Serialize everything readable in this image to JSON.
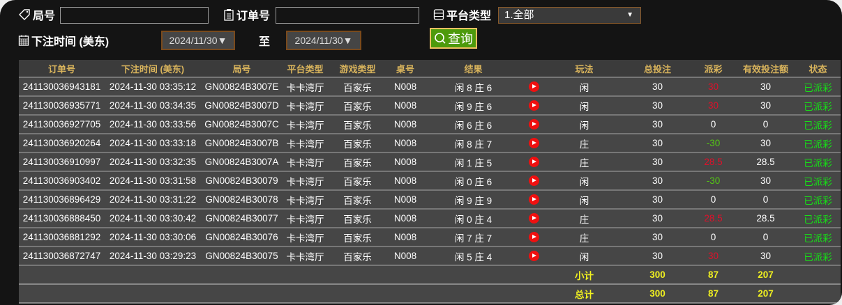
{
  "filters": {
    "round_label": "局号",
    "round_value": "",
    "order_label": "订单号",
    "order_value": "",
    "platform_label": "平台类型",
    "platform_value": "1.全部",
    "time_label": "下注时间 (美东)",
    "date_from": "2024/11/30▼",
    "to_label": "至",
    "date_to": "2024/11/30▼",
    "query_label": "查询"
  },
  "table": {
    "headers": [
      "订单号",
      "下注时间 (美东)",
      "局号",
      "平台类型",
      "游戏类型",
      "桌号",
      "结果",
      "",
      "玩法",
      "总投注",
      "派彩",
      "有效投注额",
      "状态"
    ],
    "rows": [
      {
        "order": "241130036943181",
        "time": "2024-11-30 03:35:12",
        "round": "GN00824B3007E",
        "platform": "卡卡湾厅",
        "game": "百家乐",
        "table": "N008",
        "result": "闲 8 庄 6",
        "play": "闲",
        "bet": "30",
        "payout": "30",
        "payout_color": "red",
        "valid": "30",
        "status": "已派彩"
      },
      {
        "order": "241130036935771",
        "time": "2024-11-30 03:34:35",
        "round": "GN00824B3007D",
        "platform": "卡卡湾厅",
        "game": "百家乐",
        "table": "N008",
        "result": "闲 9 庄 6",
        "play": "闲",
        "bet": "30",
        "payout": "30",
        "payout_color": "red",
        "valid": "30",
        "status": "已派彩"
      },
      {
        "order": "241130036927705",
        "time": "2024-11-30 03:33:56",
        "round": "GN00824B3007C",
        "platform": "卡卡湾厅",
        "game": "百家乐",
        "table": "N008",
        "result": "闲 6 庄 6",
        "play": "闲",
        "bet": "30",
        "payout": "0",
        "payout_color": "white",
        "valid": "0",
        "status": "已派彩"
      },
      {
        "order": "241130036920264",
        "time": "2024-11-30 03:33:18",
        "round": "GN00824B3007B",
        "platform": "卡卡湾厅",
        "game": "百家乐",
        "table": "N008",
        "result": "闲 8 庄 7",
        "play": "庄",
        "bet": "30",
        "payout": "-30",
        "payout_color": "green",
        "valid": "30",
        "status": "已派彩"
      },
      {
        "order": "241130036910997",
        "time": "2024-11-30 03:32:35",
        "round": "GN00824B3007A",
        "platform": "卡卡湾厅",
        "game": "百家乐",
        "table": "N008",
        "result": "闲 1 庄 5",
        "play": "庄",
        "bet": "30",
        "payout": "28.5",
        "payout_color": "red",
        "valid": "28.5",
        "status": "已派彩"
      },
      {
        "order": "241130036903402",
        "time": "2024-11-30 03:31:58",
        "round": "GN00824B30079",
        "platform": "卡卡湾厅",
        "game": "百家乐",
        "table": "N008",
        "result": "闲 0 庄 6",
        "play": "闲",
        "bet": "30",
        "payout": "-30",
        "payout_color": "green",
        "valid": "30",
        "status": "已派彩"
      },
      {
        "order": "241130036896429",
        "time": "2024-11-30 03:31:22",
        "round": "GN00824B30078",
        "platform": "卡卡湾厅",
        "game": "百家乐",
        "table": "N008",
        "result": "闲 9 庄 9",
        "play": "闲",
        "bet": "30",
        "payout": "0",
        "payout_color": "white",
        "valid": "0",
        "status": "已派彩"
      },
      {
        "order": "241130036888450",
        "time": "2024-11-30 03:30:42",
        "round": "GN00824B30077",
        "platform": "卡卡湾厅",
        "game": "百家乐",
        "table": "N008",
        "result": "闲 0 庄 4",
        "play": "庄",
        "bet": "30",
        "payout": "28.5",
        "payout_color": "red",
        "valid": "28.5",
        "status": "已派彩"
      },
      {
        "order": "241130036881292",
        "time": "2024-11-30 03:30:06",
        "round": "GN00824B30076",
        "platform": "卡卡湾厅",
        "game": "百家乐",
        "table": "N008",
        "result": "闲 7 庄 7",
        "play": "庄",
        "bet": "30",
        "payout": "0",
        "payout_color": "white",
        "valid": "0",
        "status": "已派彩"
      },
      {
        "order": "241130036872747",
        "time": "2024-11-30 03:29:23",
        "round": "GN00824B30075",
        "platform": "卡卡湾厅",
        "game": "百家乐",
        "table": "N008",
        "result": "闲 5 庄 4",
        "play": "闲",
        "bet": "30",
        "payout": "30",
        "payout_color": "red",
        "valid": "30",
        "status": "已派彩"
      }
    ],
    "subtotal": {
      "label": "小计",
      "bet": "300",
      "payout": "87",
      "valid": "207"
    },
    "total": {
      "label": "总计",
      "bet": "300",
      "payout": "87",
      "valid": "207"
    }
  },
  "colors": {
    "header_text": "#d9b45c",
    "win": "#e0102a",
    "loss": "#54c814",
    "status": "#16e016",
    "sum": "#f0f020",
    "query": "#4d9a0c"
  }
}
